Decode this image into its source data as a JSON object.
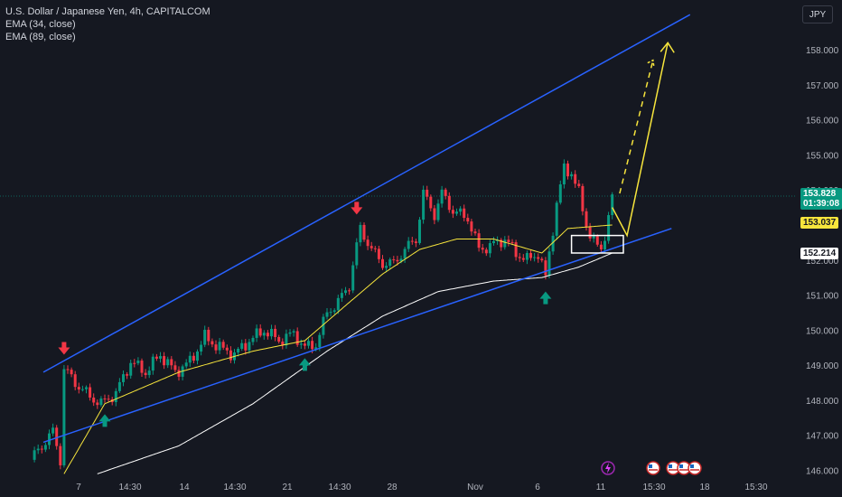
{
  "legend": {
    "symbol": "U.S. Dollar / Japanese Yen, 4h, CAPITALCOM",
    "ema34": "EMA (34, close)",
    "ema89": "EMA (89, close)"
  },
  "currency_button": "JPY",
  "price_tags": {
    "last": "153.828",
    "countdown": "01:39:08",
    "ema": "153.037",
    "level": "152.214"
  },
  "colors": {
    "background": "#151821",
    "bull": "#089981",
    "bear": "#f23645",
    "channel": "#2962ff",
    "ema_fast": "#f7e53c",
    "ema_slow": "#ffffff",
    "projection": "#f7e53c"
  },
  "chart_data": {
    "type": "candlestick",
    "title": "U.S. Dollar / Japanese Yen, 4h, CAPITALCOM",
    "x_tick_labels": [
      "7",
      "14:30",
      "14",
      "14:30",
      "21",
      "14:30",
      "28",
      "Nov",
      "6",
      "11",
      "15:30",
      "18",
      "15:30"
    ],
    "y_tick_labels": [
      "146.000",
      "147.000",
      "148.000",
      "149.000",
      "150.000",
      "151.000",
      "152.000",
      "153.000",
      "154.000",
      "155.000",
      "156.000",
      "157.000",
      "158.000"
    ],
    "ylim": [
      145.7,
      159.0
    ],
    "grid": false,
    "series": [
      {
        "name": "EMA (34, close)"
      },
      {
        "name": "EMA (89, close)"
      }
    ],
    "last_price": 153.828,
    "ema_value": 153.037,
    "marked_level": 152.214,
    "price_path_waypoints": [
      [
        0,
        146.3
      ],
      [
        3,
        146.7
      ],
      [
        6,
        147.1
      ],
      [
        8,
        146.3
      ],
      [
        9,
        148.9
      ],
      [
        12,
        148.5
      ],
      [
        16,
        148.1
      ],
      [
        19,
        147.9
      ],
      [
        23,
        148.2
      ],
      [
        27,
        149.1
      ],
      [
        31,
        148.8
      ],
      [
        35,
        149.3
      ],
      [
        39,
        148.8
      ],
      [
        43,
        149.1
      ],
      [
        47,
        149.8
      ],
      [
        51,
        149.5
      ],
      [
        55,
        149.3
      ],
      [
        59,
        149.7
      ],
      [
        63,
        150.0
      ],
      [
        67,
        149.7
      ],
      [
        71,
        149.9
      ],
      [
        74,
        149.5
      ],
      [
        77,
        149.6
      ],
      [
        80,
        150.5
      ],
      [
        83,
        150.8
      ],
      [
        86,
        151.3
      ],
      [
        88,
        152.4
      ],
      [
        89,
        152.9
      ],
      [
        92,
        152.3
      ],
      [
        95,
        151.9
      ],
      [
        98,
        151.9
      ],
      [
        101,
        152.3
      ],
      [
        104,
        152.6
      ],
      [
        106,
        153.9
      ],
      [
        109,
        153.3
      ],
      [
        111,
        153.9
      ],
      [
        114,
        153.4
      ],
      [
        118,
        153.2
      ],
      [
        121,
        152.3
      ],
      [
        124,
        152.4
      ],
      [
        128,
        152.6
      ],
      [
        131,
        152.2
      ],
      [
        134,
        152.0
      ],
      [
        137,
        152.2
      ],
      [
        139,
        151.5
      ],
      [
        142,
        153.6
      ],
      [
        144,
        154.6
      ],
      [
        146,
        154.5
      ],
      [
        148,
        153.9
      ],
      [
        150,
        153.0
      ],
      [
        152,
        152.5
      ],
      [
        154,
        152.3
      ],
      [
        156,
        153.2
      ],
      [
        157,
        153.8
      ]
    ],
    "ema_fast_waypoints": [
      [
        9,
        145.9
      ],
      [
        20,
        147.9
      ],
      [
        40,
        148.8
      ],
      [
        60,
        149.4
      ],
      [
        74,
        149.7
      ],
      [
        85,
        150.7
      ],
      [
        95,
        151.6
      ],
      [
        105,
        152.3
      ],
      [
        115,
        152.6
      ],
      [
        125,
        152.6
      ],
      [
        138,
        152.2
      ],
      [
        145,
        152.9
      ],
      [
        157,
        153.0
      ]
    ],
    "ema_slow_waypoints": [
      [
        18,
        145.9
      ],
      [
        40,
        146.7
      ],
      [
        60,
        147.9
      ],
      [
        80,
        149.4
      ],
      [
        95,
        150.4
      ],
      [
        110,
        151.1
      ],
      [
        125,
        151.4
      ],
      [
        138,
        151.5
      ],
      [
        148,
        151.8
      ],
      [
        157,
        152.2
      ]
    ],
    "annotations": [
      {
        "type": "channel-upper",
        "from": [
          0,
          148.8
        ],
        "to": [
          178,
          159.0
        ]
      },
      {
        "type": "channel-lower",
        "from": [
          0,
          146.8
        ],
        "to": [
          173,
          152.9
        ]
      },
      {
        "type": "rectangle",
        "x": [
          146,
          160
        ],
        "y": [
          152.2,
          152.7
        ]
      },
      {
        "type": "sell-arrow",
        "at": [
          9,
          149.3
        ]
      },
      {
        "type": "sell-arrow",
        "at": [
          88,
          153.3
        ]
      },
      {
        "type": "buy-arrow",
        "at": [
          20,
          147.6
        ]
      },
      {
        "type": "buy-arrow",
        "at": [
          74,
          149.2
        ]
      },
      {
        "type": "buy-arrow",
        "at": [
          139,
          151.1
        ]
      },
      {
        "type": "projection-solid",
        "points": [
          [
            157,
            153.5
          ],
          [
            161,
            152.7
          ],
          [
            172,
            158.2
          ]
        ]
      },
      {
        "type": "projection-dashed",
        "points": [
          [
            159,
            153.9
          ],
          [
            168,
            157.7
          ]
        ]
      }
    ]
  }
}
